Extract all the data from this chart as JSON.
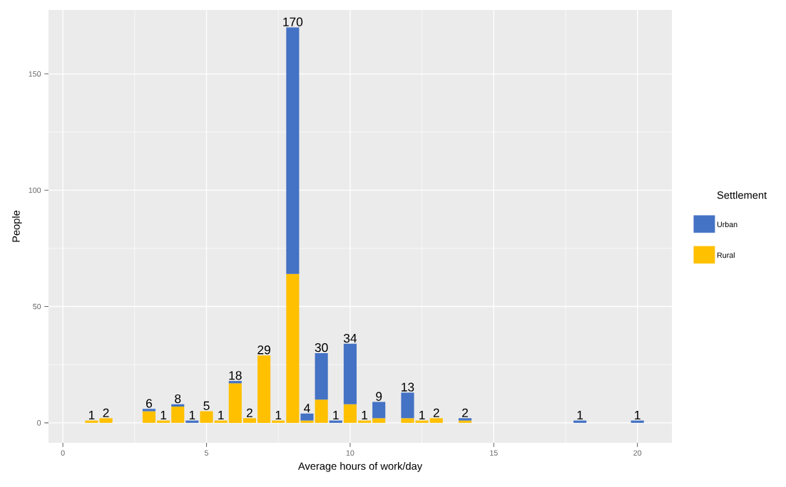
{
  "chart_data": {
    "type": "bar",
    "stacked": true,
    "xlabel": "Average hours of work/day",
    "ylabel": "People",
    "legend_title": "Settlement",
    "legend": "right",
    "x": [
      1,
      1.5,
      3,
      3.5,
      4,
      4.5,
      5,
      5.5,
      6,
      6.5,
      7,
      7.5,
      8,
      8.5,
      9,
      9.5,
      10,
      10.5,
      11,
      12,
      12.5,
      13,
      14,
      18,
      20
    ],
    "series": [
      {
        "name": "Rural",
        "color": "#ffc000",
        "values": [
          1,
          2,
          5,
          1,
          7,
          null,
          5,
          1,
          17,
          2,
          29,
          1,
          64,
          1,
          10,
          null,
          8,
          1,
          2,
          2,
          1,
          2,
          1,
          null,
          null
        ]
      },
      {
        "name": "Urban",
        "color": "#4472c4",
        "values": [
          null,
          null,
          1,
          null,
          1,
          1,
          null,
          null,
          1,
          null,
          null,
          null,
          106,
          3,
          20,
          1,
          26,
          null,
          7,
          11,
          null,
          null,
          1,
          1,
          1
        ]
      }
    ],
    "totals": [
      "1",
      "2",
      "6",
      "1",
      "8",
      "1",
      "5",
      "1",
      "18",
      "2",
      "29",
      "1",
      "170",
      "4",
      "30",
      "1",
      "34",
      "1",
      "9",
      "13",
      "1",
      "2",
      "2",
      "1",
      "1"
    ],
    "xlim": [
      -0.5,
      21.2
    ],
    "ylim": [
      -8.6,
      177.5
    ],
    "xticks": [
      0,
      5,
      10,
      15,
      20
    ],
    "yticks": [
      0,
      50,
      100,
      150
    ],
    "grid": true
  }
}
